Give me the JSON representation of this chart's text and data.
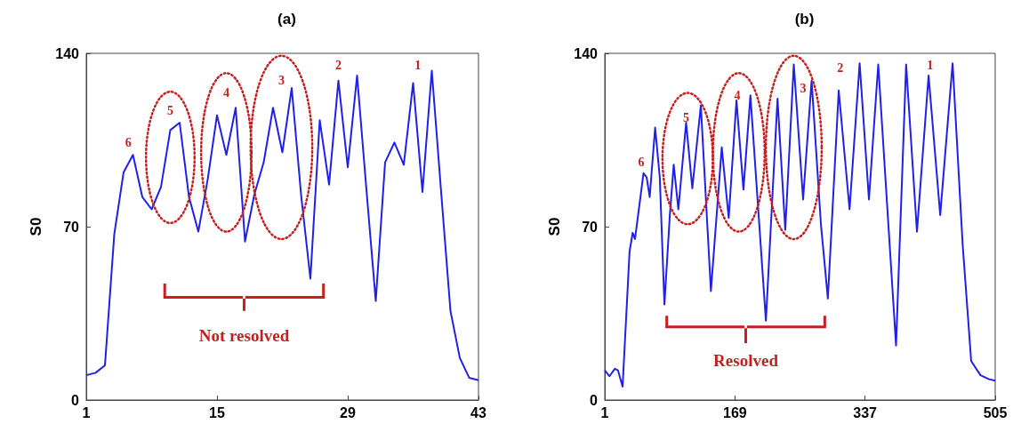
{
  "chart_data": [
    {
      "type": "line",
      "title": "(a)",
      "ylabel": "S0",
      "xlim": [
        1,
        43
      ],
      "xticks": [
        1,
        15,
        29,
        43
      ],
      "ylim": [
        0,
        140
      ],
      "yticks": [
        0,
        70,
        140
      ],
      "grid": false,
      "marker": "none",
      "line_style": "solid",
      "x": [
        1,
        2,
        3,
        4,
        5,
        6,
        7,
        8,
        9,
        10,
        11,
        12,
        13,
        14,
        15,
        16,
        17,
        18,
        19,
        20,
        21,
        22,
        23,
        24,
        25,
        26,
        27,
        28,
        29,
        30,
        31,
        32,
        33,
        34,
        35,
        36,
        37,
        38,
        39,
        40,
        41,
        42,
        43
      ],
      "series": [
        {
          "color": "#2020e8",
          "values": [
            10,
            11,
            14,
            67,
            92,
            99,
            82,
            77,
            86,
            109,
            112,
            82,
            68,
            89,
            115,
            99,
            118,
            64,
            83,
            96,
            118,
            100,
            126,
            83,
            49,
            113,
            87,
            129,
            94,
            131,
            85,
            40,
            96,
            104,
            95,
            128,
            84,
            133,
            84,
            36,
            17,
            9,
            8
          ]
        }
      ],
      "annotations": [
        "6",
        "5",
        "4",
        "3",
        "2",
        "1",
        "Not resolved"
      ]
    },
    {
      "type": "line",
      "title": "(b)",
      "ylabel": "S0",
      "xlim": [
        1,
        505
      ],
      "xticks": [
        1,
        169,
        337,
        505
      ],
      "ylim": [
        0,
        140
      ],
      "yticks": [
        0,
        70,
        140
      ],
      "grid": false,
      "marker": "none",
      "line_style": "solid",
      "x": [
        1,
        7,
        14,
        18,
        24,
        33,
        37,
        40,
        45,
        51,
        55,
        59,
        66,
        72,
        78,
        85,
        90,
        96,
        106,
        114,
        125,
        138,
        152,
        161,
        171,
        180,
        189,
        209,
        224,
        234,
        245,
        257,
        268,
        280,
        289,
        303,
        317,
        330,
        342,
        354,
        377,
        390,
        404,
        419,
        434,
        450,
        463,
        474,
        486,
        497,
        505
      ],
      "series": [
        {
          "color": "#2020e8",
          "values": [
            12,
            9.6,
            12.6,
            12,
            5.4,
            60,
            67.5,
            65,
            77,
            91.6,
            90,
            82,
            110,
            90,
            38.6,
            74.7,
            95,
            77,
            112,
            85.5,
            119,
            44,
            102,
            73.5,
            121,
            85,
            123,
            32,
            121.7,
            68.7,
            135.5,
            81,
            129,
            71,
            41,
            125,
            77,
            136,
            81,
            135.5,
            22,
            135.5,
            68,
            131,
            74.7,
            136,
            62.7,
            15.7,
            10,
            8.4,
            7.8
          ]
        }
      ],
      "annotations": [
        "6",
        "5",
        "4",
        "3",
        "2",
        "1",
        "Resolved"
      ]
    }
  ]
}
